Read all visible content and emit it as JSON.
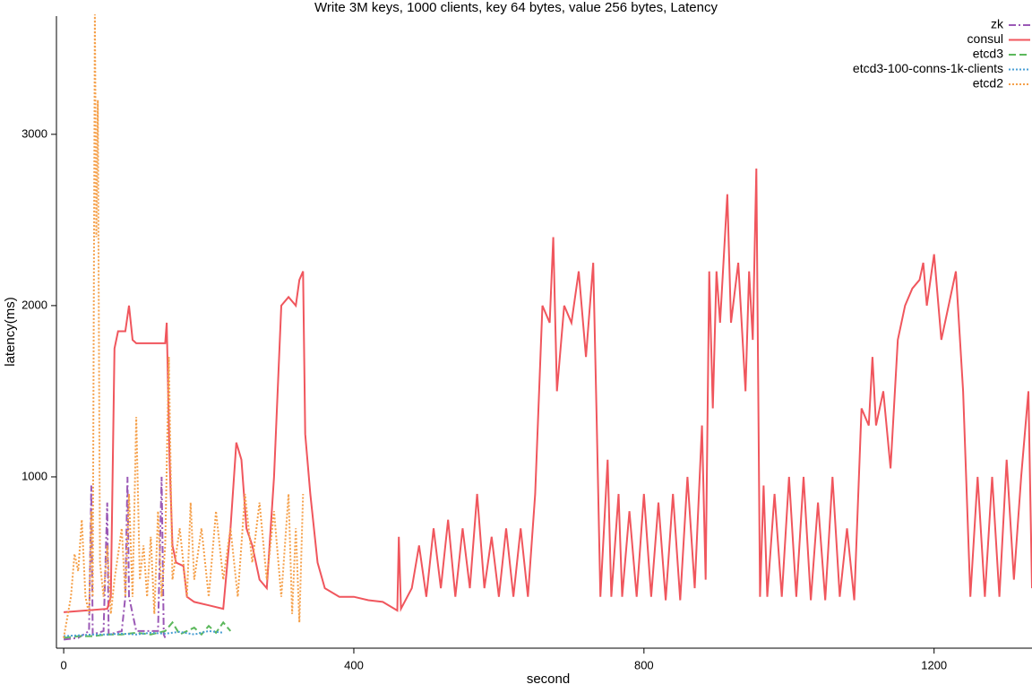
{
  "chart_data": {
    "type": "line",
    "title": "Write 3M keys, 1000 clients, key 64 bytes, value 256 bytes, Latency",
    "x_label": "second",
    "y_label": "latency(ms)",
    "xlim": [
      -10,
      1335
    ],
    "ylim": [
      0,
      3690
    ],
    "xticks": [
      0,
      400,
      800,
      1200
    ],
    "yticks": [
      1000,
      2000,
      3000
    ],
    "legend": "upper right",
    "series": [
      {
        "name": "zk",
        "color": "#9b59b6",
        "linestyle": "dashdot",
        "x": [
          0,
          20,
          35,
          38,
          40,
          55,
          60,
          62,
          80,
          85,
          88,
          90,
          100,
          130,
          135,
          138,
          140
        ],
        "values": [
          50,
          60,
          100,
          950,
          80,
          100,
          850,
          80,
          100,
          300,
          1000,
          300,
          100,
          100,
          1000,
          80,
          60
        ]
      },
      {
        "name": "consul",
        "color": "#f0565d",
        "linestyle": "solid",
        "x": [
          0,
          30,
          60,
          65,
          70,
          75,
          85,
          90,
          95,
          100,
          120,
          140,
          142,
          146,
          150,
          155,
          165,
          170,
          180,
          200,
          220,
          230,
          238,
          245,
          252,
          260,
          270,
          280,
          290,
          300,
          310,
          320,
          325,
          330,
          333,
          340,
          350,
          360,
          380,
          400,
          420,
          440,
          460,
          462,
          465,
          480,
          490,
          500,
          510,
          520,
          530,
          540,
          550,
          560,
          570,
          580,
          590,
          600,
          610,
          620,
          630,
          640,
          650,
          660,
          670,
          675,
          680,
          690,
          700,
          710,
          720,
          730,
          735,
          740,
          750,
          755,
          765,
          770,
          780,
          790,
          800,
          810,
          820,
          830,
          840,
          850,
          860,
          870,
          880,
          885,
          890,
          895,
          900,
          905,
          915,
          920,
          930,
          940,
          945,
          950,
          955,
          960,
          965,
          970,
          980,
          990,
          1000,
          1010,
          1020,
          1030,
          1040,
          1050,
          1060,
          1070,
          1080,
          1090,
          1100,
          1110,
          1115,
          1120,
          1130,
          1140,
          1150,
          1160,
          1170,
          1180,
          1185,
          1190,
          1200,
          1210,
          1220,
          1230,
          1240,
          1250,
          1260,
          1270,
          1280,
          1290,
          1300,
          1310,
          1320,
          1330,
          1335
        ],
        "values": [
          210,
          220,
          230,
          300,
          1750,
          1850,
          1850,
          2000,
          1800,
          1780,
          1780,
          1780,
          1900,
          1100,
          600,
          500,
          480,
          300,
          270,
          250,
          230,
          700,
          1200,
          1100,
          700,
          600,
          400,
          350,
          1000,
          2000,
          2050,
          2000,
          2150,
          2200,
          1250,
          900,
          500,
          350,
          300,
          300,
          280,
          270,
          220,
          650,
          230,
          350,
          600,
          300,
          700,
          350,
          750,
          300,
          700,
          350,
          900,
          350,
          650,
          300,
          700,
          300,
          700,
          300,
          900,
          2000,
          1900,
          2400,
          1500,
          2000,
          1900,
          2200,
          1700,
          2250,
          1300,
          300,
          1100,
          300,
          900,
          300,
          800,
          300,
          900,
          300,
          850,
          280,
          900,
          280,
          1000,
          350,
          1300,
          400,
          2200,
          1400,
          2200,
          1900,
          2650,
          1900,
          2250,
          1500,
          2200,
          1800,
          2800,
          300,
          950,
          300,
          900,
          300,
          1000,
          300,
          1000,
          280,
          850,
          280,
          1000,
          300,
          700,
          280,
          1400,
          1300,
          1700,
          1300,
          1500,
          1050,
          1800,
          2000,
          2100,
          2150,
          2250,
          2000,
          2300,
          1800,
          2000,
          2200,
          1500,
          300,
          1000,
          300,
          1000,
          300,
          1100,
          400,
          1000,
          1500,
          350
        ]
      },
      {
        "name": "etcd3",
        "color": "#5cb85c",
        "linestyle": "dashed",
        "x": [
          0,
          20,
          40,
          60,
          80,
          100,
          120,
          140,
          150,
          160,
          180,
          190,
          200,
          210,
          220,
          230
        ],
        "values": [
          60,
          70,
          70,
          80,
          80,
          90,
          80,
          100,
          150,
          80,
          120,
          80,
          130,
          90,
          150,
          100
        ]
      },
      {
        "name": "etcd3-100-conns-1k-clients",
        "color": "#4a9fd4",
        "linestyle": "dotted",
        "x": [
          0,
          20,
          40,
          60,
          80,
          100,
          120,
          140,
          160,
          180,
          200,
          220
        ],
        "values": [
          70,
          75,
          80,
          80,
          85,
          80,
          90,
          85,
          95,
          80,
          100,
          90
        ]
      },
      {
        "name": "etcd2",
        "color": "#f5a04a",
        "linestyle": "dotted",
        "x": [
          0,
          10,
          15,
          20,
          25,
          30,
          35,
          38,
          40,
          43,
          45,
          47,
          50,
          55,
          60,
          65,
          70,
          80,
          85,
          90,
          95,
          100,
          105,
          110,
          115,
          120,
          125,
          130,
          135,
          140,
          145,
          150,
          160,
          170,
          175,
          180,
          190,
          200,
          210,
          220,
          230,
          240,
          250,
          260,
          270,
          280,
          290,
          300,
          310,
          315,
          320,
          325,
          330
        ],
        "values": [
          60,
          300,
          550,
          450,
          750,
          300,
          200,
          800,
          300,
          3700,
          2400,
          3200,
          500,
          300,
          600,
          200,
          400,
          700,
          300,
          900,
          300,
          1350,
          400,
          600,
          300,
          650,
          200,
          800,
          300,
          600,
          1700,
          400,
          700,
          300,
          850,
          400,
          700,
          300,
          800,
          400,
          700,
          300,
          900,
          500,
          850,
          400,
          800,
          300,
          900,
          200,
          700,
          150,
          900
        ]
      }
    ]
  }
}
